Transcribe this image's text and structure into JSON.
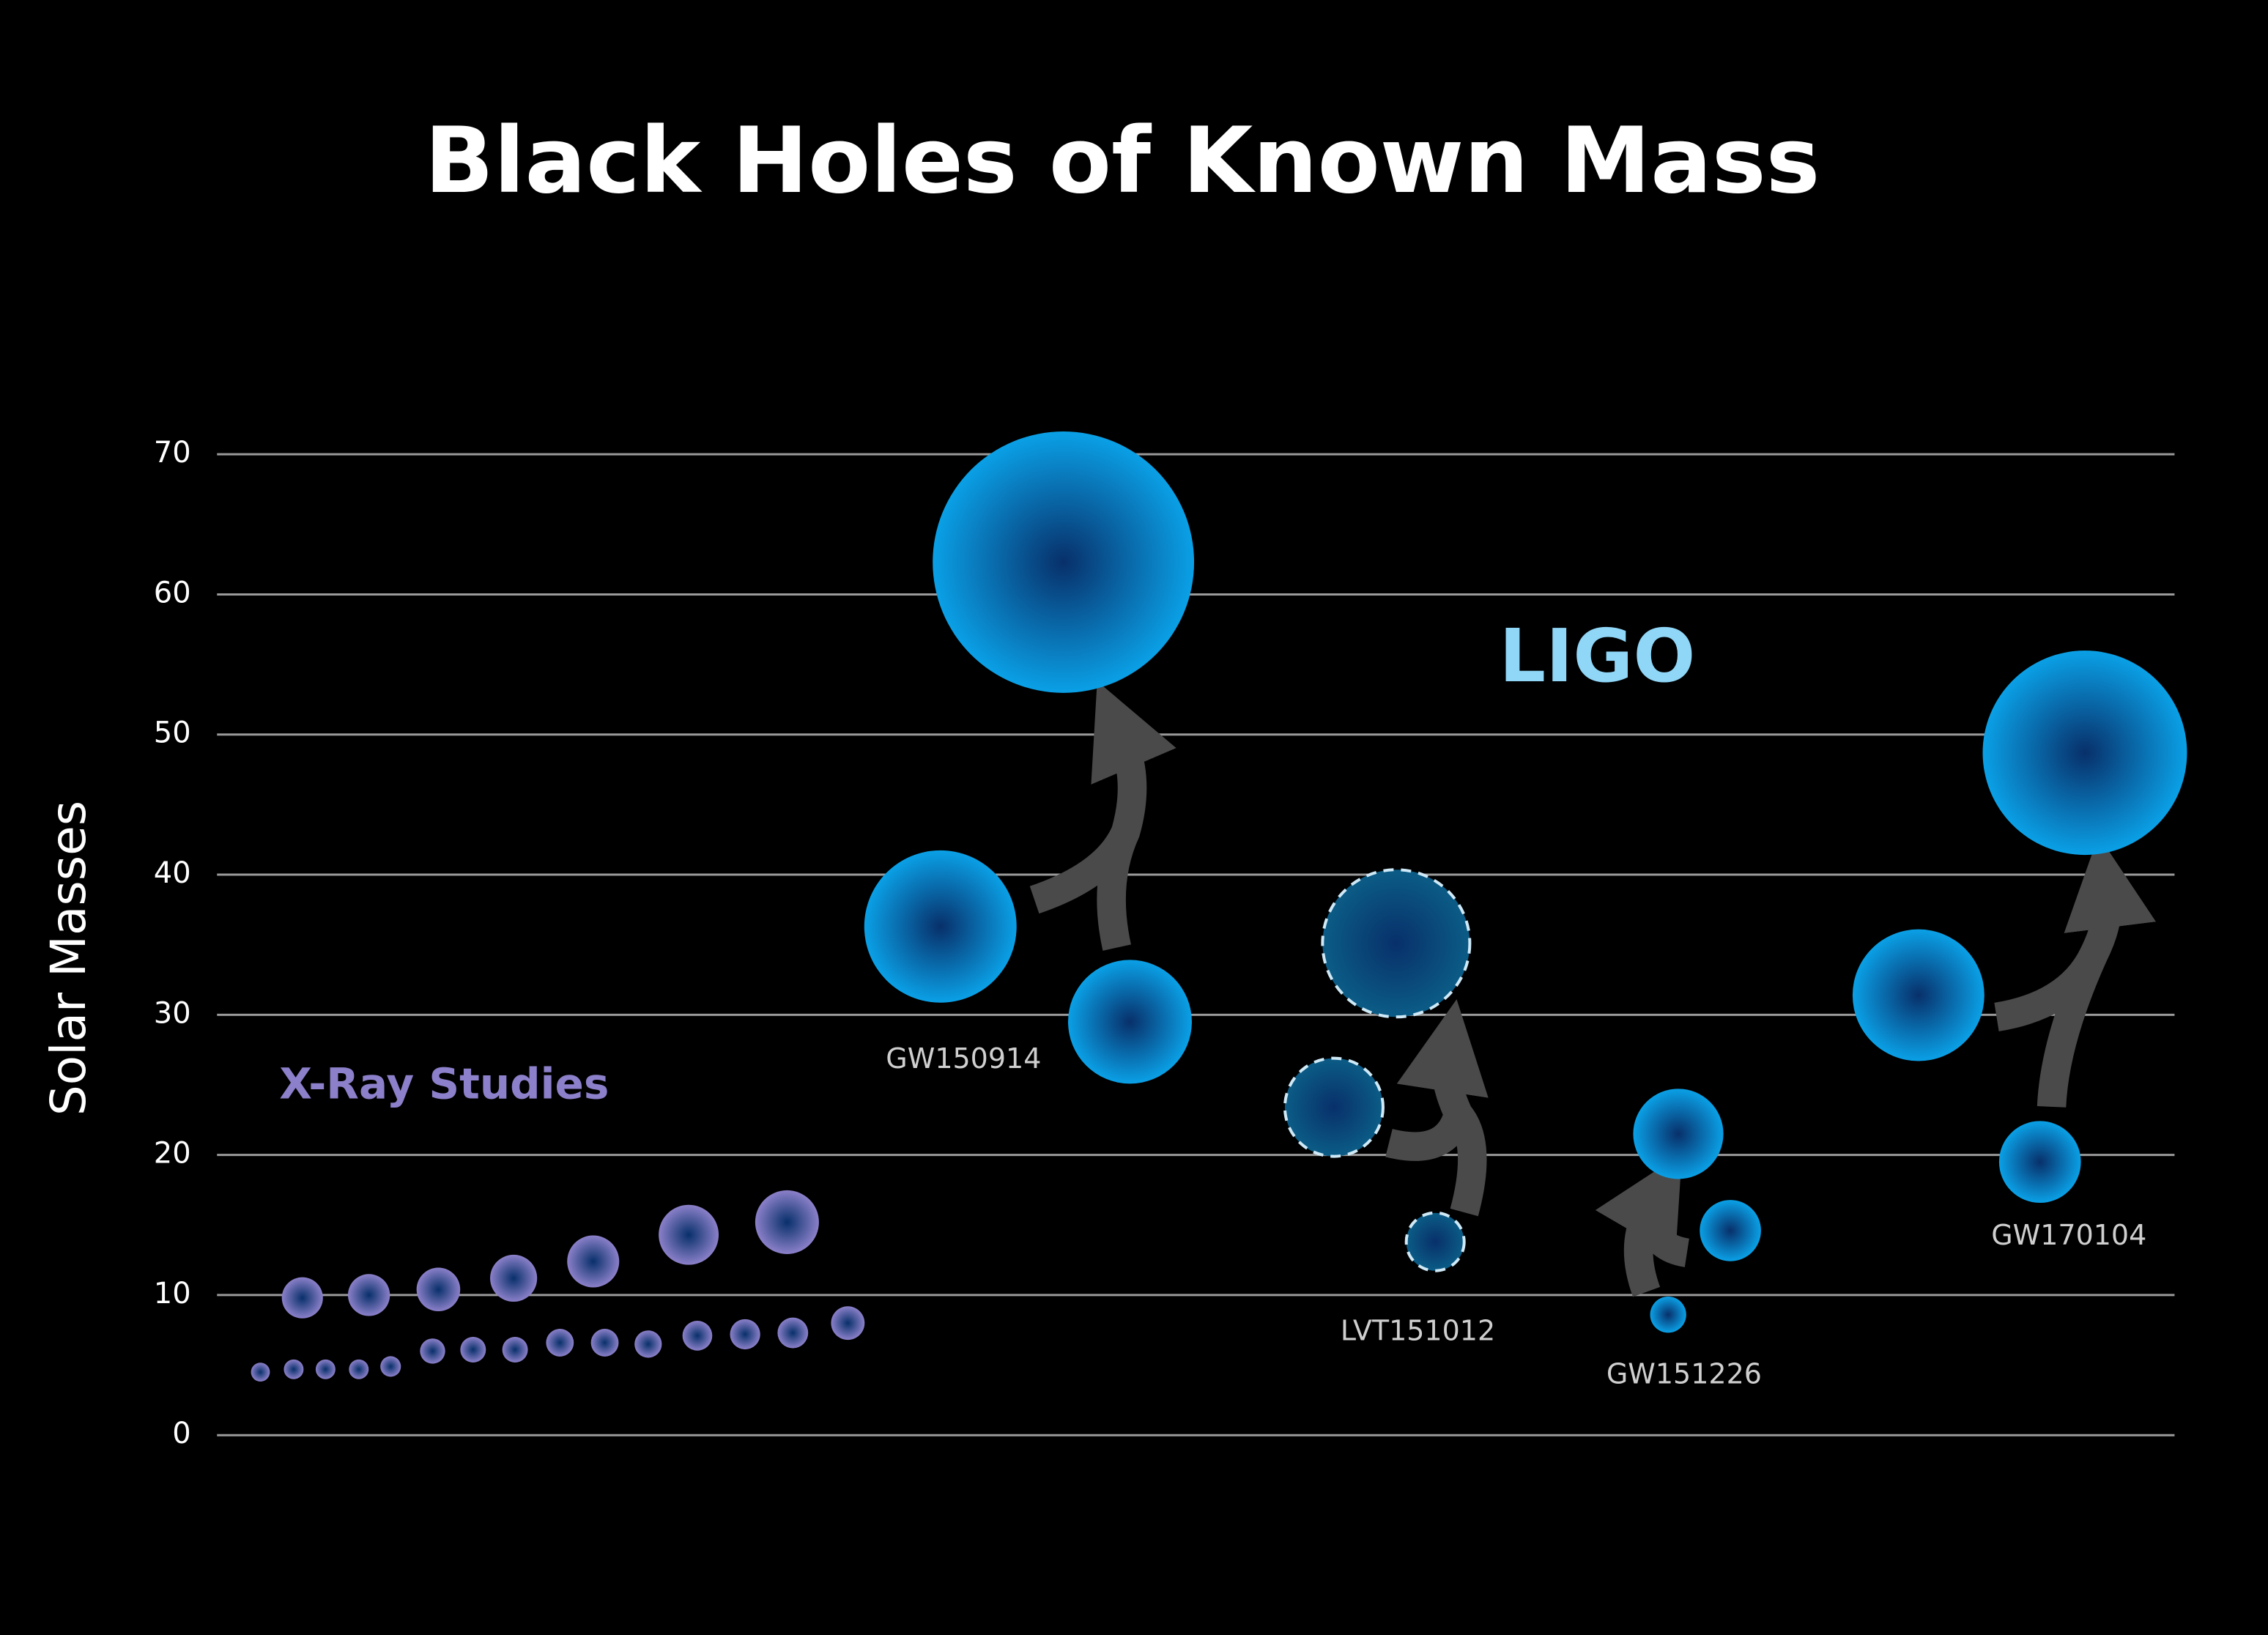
{
  "chart_data": {
    "type": "bubble",
    "title": "Black Holes of Known Mass",
    "y_label": "Solar Masses",
    "ylim": [
      0,
      70
    ],
    "yticks": [
      0,
      10,
      20,
      30,
      40,
      50,
      60,
      70
    ],
    "grid": true,
    "series": [
      {
        "name": "X-Ray Studies",
        "color": "#8b80c9",
        "values": [
          4.5,
          9.8,
          4.7,
          4.7,
          10,
          4.7,
          4.9,
          6,
          10.4,
          6.1,
          6.1,
          11.2,
          6.6,
          12.4,
          6.6,
          6.5,
          14.3,
          7.1,
          7.2,
          15.2,
          7.3,
          8.0
        ]
      },
      {
        "name": "LIGO",
        "color": "#0aa0e6",
        "events": [
          {
            "label": "GW150914",
            "values": [
              36.3,
              29.5,
              62.3
            ],
            "color": "#0aa0e6",
            "dashed": false
          },
          {
            "label": "LVT151012",
            "values": [
              23.4,
              13.8,
              35.1
            ],
            "color": "#0b5c86",
            "dashed": true
          },
          {
            "label": "GW151226",
            "values": [
              21.5,
              14.6,
              8.6
            ],
            "color": "#0aa0e6",
            "dashed": false
          },
          {
            "label": "GW170104",
            "values": [
              31.4,
              19.5,
              48.7
            ],
            "color": "#0aa0e6",
            "dashed": false
          }
        ]
      }
    ]
  }
}
